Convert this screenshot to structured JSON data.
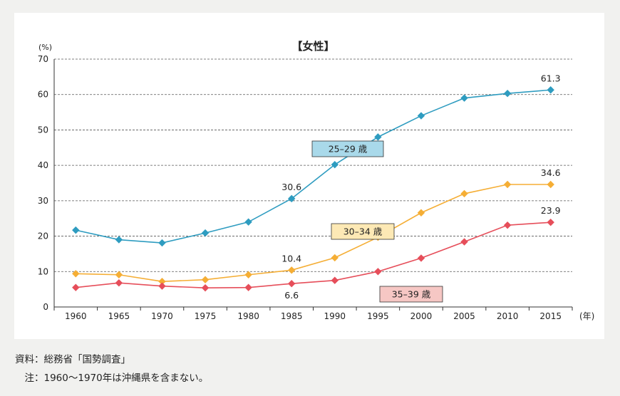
{
  "chart_data": {
    "type": "line",
    "title": "【女性】",
    "y_unit": "(%)",
    "x_unit": "(年)",
    "ylim": [
      0,
      70
    ],
    "y_ticks": [
      0,
      10,
      20,
      30,
      40,
      50,
      60,
      70
    ],
    "grid": "horizontal dashed",
    "categories": [
      "1960",
      "1965",
      "1970",
      "1975",
      "1980",
      "1985",
      "1990",
      "1995",
      "2000",
      "2005",
      "2010",
      "2015"
    ],
    "series": [
      {
        "name": "25–29 歳",
        "color": "#2e9cc0",
        "label_fill": "#a9d9ea",
        "values": [
          21.7,
          19.0,
          18.1,
          20.9,
          24.0,
          30.6,
          40.2,
          48.0,
          54.0,
          59.0,
          60.3,
          61.3
        ]
      },
      {
        "name": "30–34 歳",
        "color": "#f5ae35",
        "label_fill": "#fde9b5",
        "values": [
          9.4,
          9.1,
          7.2,
          7.7,
          9.1,
          10.4,
          13.9,
          19.7,
          26.6,
          32.0,
          34.6,
          34.6
        ]
      },
      {
        "name": "35–39 歳",
        "color": "#e64e5a",
        "label_fill": "#f6c7c4",
        "values": [
          5.5,
          6.8,
          5.9,
          5.4,
          5.5,
          6.6,
          7.5,
          10.0,
          13.8,
          18.4,
          23.1,
          23.9
        ]
      }
    ],
    "annotations": [
      {
        "series": 0,
        "index": 5,
        "text": "30.6",
        "place": "above"
      },
      {
        "series": 0,
        "index": 11,
        "text": "61.3",
        "place": "above"
      },
      {
        "series": 1,
        "index": 5,
        "text": "10.4",
        "place": "above"
      },
      {
        "series": 1,
        "index": 11,
        "text": "34.6",
        "place": "above"
      },
      {
        "series": 2,
        "index": 5,
        "text": "6.6",
        "place": "below"
      },
      {
        "series": 2,
        "index": 11,
        "text": "23.9",
        "place": "above"
      }
    ]
  },
  "notes": {
    "source": "資料：総務省「国勢調査」",
    "note": "　注：1960～1970年は沖縄県を含まない。"
  }
}
